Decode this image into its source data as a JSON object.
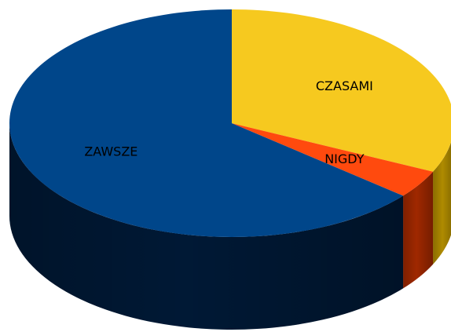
{
  "chart_data": {
    "type": "pie3d",
    "categories": [
      "CZASAMI",
      "NIGDY",
      "ZAWSZE"
    ],
    "values": [
      32,
      4,
      64
    ],
    "colors": [
      "#f6c91f",
      "#ff4a0e",
      "#00468a"
    ],
    "side_colors": [
      "#b89200",
      "#a82a00",
      "#001a38"
    ]
  }
}
